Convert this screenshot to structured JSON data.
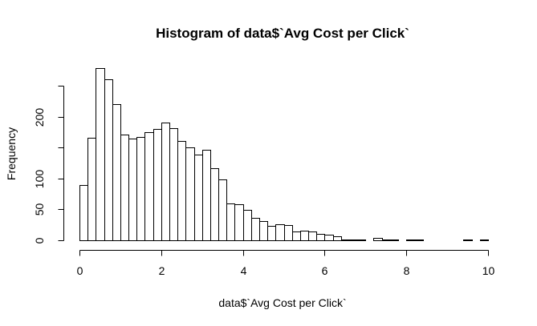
{
  "chart_data": {
    "type": "bar",
    "title": "Histogram of data$`Avg Cost per Click`",
    "xlabel": "data$`Avg Cost per Click`",
    "ylabel": "Frequency",
    "xlim": [
      0,
      10
    ],
    "ylim": [
      0,
      250
    ],
    "x_ticks": [
      0,
      2,
      4,
      6,
      8,
      10
    ],
    "y_ticks": [
      0,
      50,
      100,
      200
    ],
    "bin_width": 0.2,
    "bin_start": 0,
    "values": [
      90,
      166,
      278,
      261,
      220,
      171,
      165,
      167,
      175,
      180,
      190,
      181,
      160,
      150,
      139,
      146,
      117,
      98,
      60,
      58,
      49,
      36,
      31,
      23,
      26,
      24,
      14,
      15,
      14,
      10,
      9,
      6,
      1,
      1,
      1,
      0,
      4,
      1,
      1,
      0,
      1,
      1,
      0,
      0,
      0,
      0,
      0,
      1,
      0,
      1
    ]
  }
}
